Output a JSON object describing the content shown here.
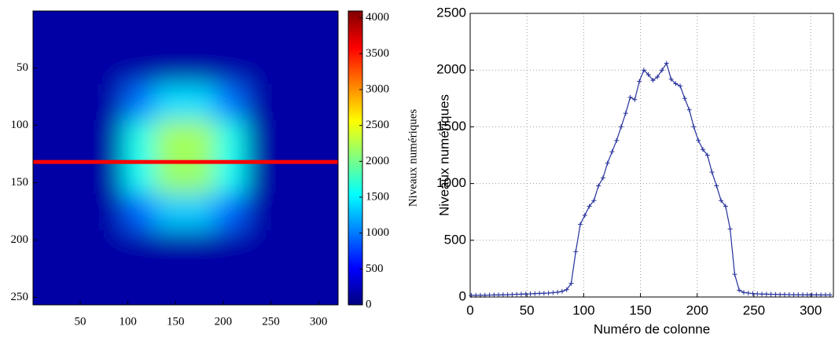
{
  "chart_data": [
    {
      "type": "heatmap",
      "xlim": [
        0.5,
        320.5
      ],
      "ylim": [
        0.5,
        256.5
      ],
      "yaxis_reversed": true,
      "xticks": [
        50,
        100,
        150,
        200,
        250,
        300
      ],
      "yticks": [
        50,
        100,
        150,
        200,
        250
      ],
      "cell_x": [
        16,
        48,
        80,
        112,
        144,
        176,
        208,
        240,
        272,
        304
      ],
      "cell_y": [
        16,
        48,
        80,
        112,
        144,
        176,
        208,
        240
      ],
      "values": [
        [
          150,
          150,
          150,
          150,
          150,
          150,
          150,
          150,
          150,
          150
        ],
        [
          150,
          150,
          150,
          150,
          150,
          150,
          150,
          150,
          150,
          150
        ],
        [
          150,
          150,
          150,
          980,
          1400,
          1400,
          980,
          150,
          150,
          150
        ],
        [
          150,
          150,
          150,
          1600,
          2200,
          2200,
          1600,
          150,
          150,
          150
        ],
        [
          150,
          150,
          150,
          1560,
          2150,
          2150,
          1560,
          150,
          150,
          150
        ],
        [
          150,
          150,
          150,
          920,
          1320,
          1320,
          920,
          150,
          150,
          150
        ],
        [
          150,
          150,
          150,
          150,
          150,
          150,
          150,
          150,
          150,
          150
        ],
        [
          150,
          150,
          150,
          150,
          150,
          150,
          150,
          150,
          150,
          150
        ]
      ],
      "colormap": "jet",
      "clim": [
        0,
        4095
      ],
      "colorbar_ticks": [
        0,
        500,
        1000,
        1500,
        2000,
        2500,
        3000,
        3500,
        4000
      ],
      "colorbar_label": "Niveaux numériques",
      "marker_row": 132,
      "marker_color": "#ff0000"
    },
    {
      "type": "line",
      "xlabel": "Numéro de colonne",
      "ylabel": "Niveaux numériques",
      "xlim": [
        0,
        320
      ],
      "ylim": [
        0,
        2500
      ],
      "xticks": [
        0,
        50,
        100,
        150,
        200,
        250,
        300
      ],
      "yticks": [
        0,
        500,
        1000,
        1500,
        2000,
        2500
      ],
      "grid": true,
      "color": "#24309a",
      "marker": "+",
      "x": [
        1,
        5,
        9,
        13,
        17,
        21,
        25,
        29,
        33,
        37,
        41,
        45,
        49,
        53,
        57,
        61,
        65,
        69,
        73,
        77,
        81,
        85,
        89,
        93,
        97,
        101,
        105,
        109,
        113,
        117,
        121,
        125,
        129,
        133,
        137,
        141,
        145,
        149,
        153,
        157,
        161,
        165,
        169,
        173,
        177,
        181,
        185,
        189,
        193,
        197,
        201,
        205,
        209,
        213,
        217,
        221,
        225,
        229,
        233,
        237,
        241,
        245,
        249,
        253,
        257,
        261,
        265,
        269,
        273,
        277,
        281,
        285,
        289,
        293,
        297,
        301,
        305,
        309,
        313,
        317
      ],
      "values": [
        15,
        15,
        15,
        16,
        17,
        18,
        18,
        20,
        20,
        22,
        24,
        25,
        27,
        28,
        30,
        32,
        33,
        35,
        38,
        42,
        50,
        65,
        120,
        400,
        640,
        720,
        800,
        850,
        980,
        1050,
        1180,
        1280,
        1380,
        1500,
        1620,
        1760,
        1740,
        1900,
        2000,
        1960,
        1910,
        1940,
        2000,
        2060,
        1920,
        1880,
        1860,
        1750,
        1650,
        1500,
        1380,
        1300,
        1250,
        1100,
        980,
        850,
        800,
        600,
        200,
        60,
        40,
        35,
        30,
        28,
        26,
        25,
        24,
        23,
        22,
        22,
        21,
        20,
        20,
        20,
        19,
        19,
        19,
        18,
        18,
        18
      ]
    }
  ]
}
